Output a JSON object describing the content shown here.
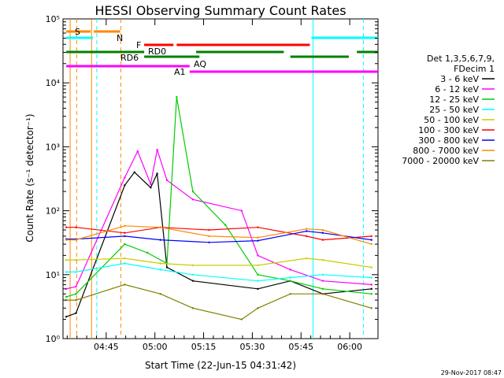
{
  "chart_data": {
    "type": "line",
    "title": "HESSI Observing Summary Count Rates",
    "xlabel": "Start Time (22-Jun-15 04:31:42)",
    "ylabel": "Count Rate (s⁻¹ detector⁻¹)",
    "yscale": "log",
    "ylim": [
      1,
      100000
    ],
    "xlim_minutes_after_0431": [
      0,
      97
    ],
    "x_ticks": [
      "04:45",
      "05:00",
      "05:15",
      "05:30",
      "05:45",
      "06:00"
    ],
    "y_ticks": [
      "10⁰",
      "10¹",
      "10²",
      "10³",
      "10⁴",
      "10⁵"
    ],
    "legend_header": [
      "Det 1,3,5,6,7,9,",
      "FDecim 1"
    ],
    "legend_position": "right",
    "series": [
      {
        "name": "3 - 6 keV",
        "color": "#000000",
        "points": [
          [
            1,
            2.2
          ],
          [
            4,
            2.5
          ],
          [
            19,
            250
          ],
          [
            22,
            400
          ],
          [
            27,
            230
          ],
          [
            29,
            380
          ],
          [
            32,
            13
          ],
          [
            40,
            8
          ],
          [
            60,
            6
          ],
          [
            70,
            8
          ],
          [
            80,
            5
          ],
          [
            95,
            6
          ]
        ]
      },
      {
        "name": "6 - 12 keV",
        "color": "#ff00ff",
        "points": [
          [
            1,
            6
          ],
          [
            4,
            6.5
          ],
          [
            19,
            330
          ],
          [
            23,
            850
          ],
          [
            27,
            260
          ],
          [
            29,
            900
          ],
          [
            32,
            300
          ],
          [
            40,
            150
          ],
          [
            55,
            100
          ],
          [
            60,
            20
          ],
          [
            70,
            12
          ],
          [
            80,
            8
          ],
          [
            95,
            7
          ]
        ]
      },
      {
        "name": "12 - 25 keV",
        "color": "#00cc00",
        "points": [
          [
            1,
            4.5
          ],
          [
            4,
            5
          ],
          [
            19,
            30
          ],
          [
            26,
            22
          ],
          [
            32,
            15
          ],
          [
            35,
            6000
          ],
          [
            40,
            200
          ],
          [
            50,
            60
          ],
          [
            60,
            10
          ],
          [
            70,
            8
          ],
          [
            80,
            6
          ],
          [
            95,
            5
          ]
        ]
      },
      {
        "name": "25 - 50 keV",
        "color": "#00ffff",
        "points": [
          [
            1,
            11
          ],
          [
            4,
            11
          ],
          [
            19,
            15
          ],
          [
            30,
            12
          ],
          [
            40,
            10
          ],
          [
            60,
            8
          ],
          [
            70,
            9
          ],
          [
            80,
            10
          ],
          [
            95,
            9
          ]
        ]
      },
      {
        "name": "50 - 100 keV",
        "color": "#cccc00",
        "points": [
          [
            1,
            17
          ],
          [
            4,
            17
          ],
          [
            19,
            18
          ],
          [
            30,
            15
          ],
          [
            40,
            14
          ],
          [
            60,
            14
          ],
          [
            75,
            18
          ],
          [
            80,
            17
          ],
          [
            95,
            13
          ]
        ]
      },
      {
        "name": "100 - 300 keV",
        "color": "#ff0000",
        "points": [
          [
            1,
            55
          ],
          [
            4,
            55
          ],
          [
            19,
            45
          ],
          [
            30,
            55
          ],
          [
            45,
            50
          ],
          [
            60,
            55
          ],
          [
            75,
            40
          ],
          [
            80,
            35
          ],
          [
            95,
            40
          ]
        ]
      },
      {
        "name": "300 - 800 keV",
        "color": "#0000ff",
        "points": [
          [
            1,
            36
          ],
          [
            4,
            36
          ],
          [
            19,
            40
          ],
          [
            30,
            35
          ],
          [
            45,
            32
          ],
          [
            60,
            34
          ],
          [
            75,
            48
          ],
          [
            80,
            45
          ],
          [
            95,
            35
          ]
        ]
      },
      {
        "name": "800 - 7000 keV",
        "color": "#ff8800",
        "points": [
          [
            1,
            35
          ],
          [
            4,
            35
          ],
          [
            19,
            58
          ],
          [
            30,
            55
          ],
          [
            45,
            40
          ],
          [
            60,
            38
          ],
          [
            75,
            52
          ],
          [
            80,
            50
          ],
          [
            95,
            30
          ]
        ]
      },
      {
        "name": "7000 - 20000 keV",
        "color": "#808000",
        "points": [
          [
            1,
            4
          ],
          [
            4,
            4
          ],
          [
            19,
            7
          ],
          [
            30,
            5
          ],
          [
            40,
            3
          ],
          [
            55,
            2
          ],
          [
            60,
            3
          ],
          [
            70,
            5
          ],
          [
            80,
            5
          ],
          [
            95,
            3
          ]
        ]
      }
    ],
    "annotations": [
      {
        "text": "S",
        "color": "#ff8800"
      },
      {
        "text": "N",
        "color": "#00ffff"
      },
      {
        "text": "F",
        "color": "#ff0000"
      },
      {
        "text": "RD0",
        "color": "#008000"
      },
      {
        "text": "RD6",
        "color": "#008000"
      },
      {
        "text": "AQ",
        "color": "#ff00ff"
      },
      {
        "text": "A1",
        "color": "#ff00ff"
      }
    ]
  },
  "footer": {
    "timestamp": "29-Nov-2017 08:47"
  }
}
